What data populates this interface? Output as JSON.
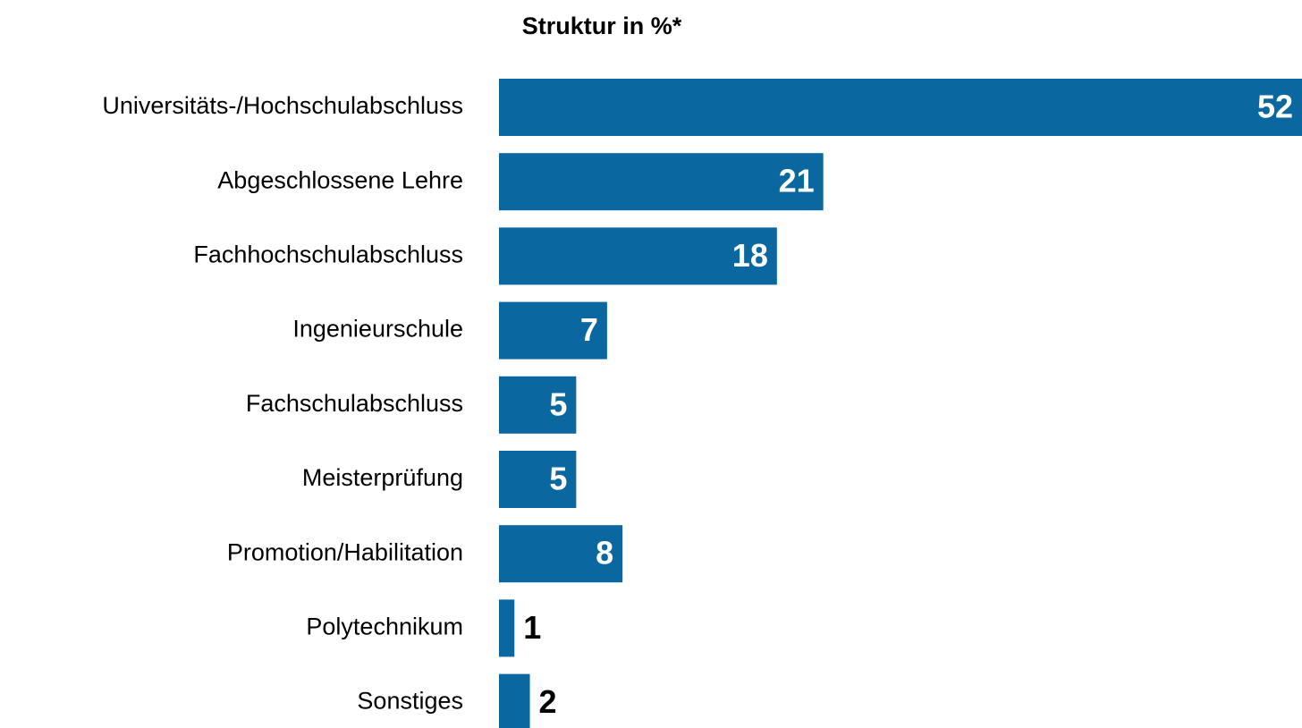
{
  "chart_data": {
    "type": "bar",
    "orientation": "horizontal",
    "title": "Struktur in %*",
    "categories": [
      "Universitäts-/Hochschulabschluss",
      "Abgeschlossene Lehre",
      "Fachhochschulabschluss",
      "Ingenieurschule",
      "Fachschulabschluss",
      "Meisterprüfung",
      "Promotion/Habilitation",
      "Polytechnikum",
      "Sonstiges"
    ],
    "values": [
      52,
      21,
      18,
      7,
      5,
      5,
      8,
      1,
      2
    ],
    "color": "#0a67a0"
  }
}
